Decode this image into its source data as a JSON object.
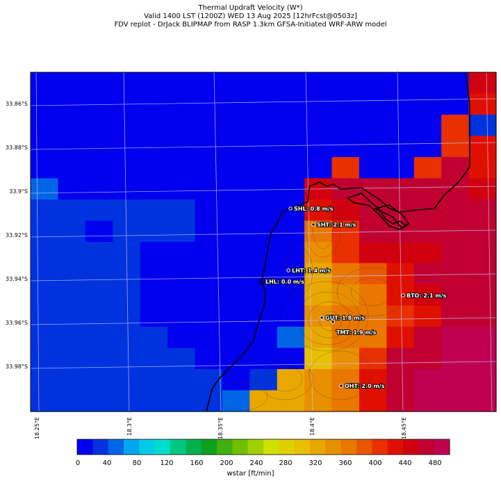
{
  "title": {
    "line1": "Thermal Updraft Velocity (W*)",
    "line2": "Valid 1400 LST (1200Z) WED 13 Aug 2025 [12hrFcst@0503z]",
    "line3": "FDV replot - DrJack BLIPMAP from RASP 1.3km GFSA-Initiated WRF-ARW model"
  },
  "lat_labels": [
    "33.86°S",
    "33.88°S",
    "33.9°S",
    "33.92°S",
    "33.94°S",
    "33.96°S",
    "33.98°S"
  ],
  "lon_labels": [
    "18.25°E",
    "18.3°E",
    "18.35°E",
    "18.4°E",
    "18.45°E"
  ],
  "stations": [
    {
      "id": "SHL",
      "label": "SHL: 0.8 m/s",
      "value": 0.8
    },
    {
      "id": "SHT",
      "label": "SHT: 2.1 m/s",
      "value": 2.1
    },
    {
      "id": "LHT",
      "label": "LHT: 1.4 m/s",
      "value": 1.4
    },
    {
      "id": "LHL",
      "label": "LHL: 0.0 m/s",
      "value": 0.0
    },
    {
      "id": "BTO",
      "label": "BTO: 2.1 m/s",
      "value": 2.1
    },
    {
      "id": "GUT",
      "label": "GUT: 1.8 m/s",
      "value": 1.8
    },
    {
      "id": "TMT",
      "label": "TMT: 1.9 m/s",
      "value": 1.9
    },
    {
      "id": "OHT",
      "label": "OHT: 2.0 m/s",
      "value": 2.0
    }
  ],
  "colorbar": {
    "ticks": [
      "0",
      "40",
      "80",
      "120",
      "160",
      "200",
      "240",
      "280",
      "320",
      "360",
      "400",
      "440",
      "480"
    ],
    "label": "wstar [ft/min]",
    "colors": [
      "#0000ee",
      "#0033dd",
      "#0066e6",
      "#00a6ee",
      "#00cce6",
      "#00dccc",
      "#00c880",
      "#00b050",
      "#10a020",
      "#40b010",
      "#70c000",
      "#a0d000",
      "#d0e000",
      "#e0d000",
      "#e8c000",
      "#e8a800",
      "#e89000",
      "#e87800",
      "#e85800",
      "#e83000",
      "#e01000",
      "#d00010",
      "#c00030",
      "#c00050"
    ],
    "min": 0,
    "max": 500,
    "step": 20
  },
  "grid_values": [
    [
      0,
      0,
      0,
      0,
      0,
      0,
      0,
      0,
      0,
      0,
      0,
      0,
      0,
      0,
      0,
      0,
      21
    ],
    [
      0,
      0,
      0,
      0,
      0,
      0,
      0,
      0,
      0,
      0,
      0,
      0,
      0,
      0,
      0,
      0,
      20
    ],
    [
      0,
      0,
      0,
      0,
      0,
      0,
      0,
      0,
      0,
      0,
      0,
      0,
      0,
      0,
      0,
      19,
      1
    ],
    [
      0,
      0,
      0,
      0,
      0,
      0,
      0,
      0,
      0,
      0,
      0,
      0,
      0,
      0,
      0,
      19,
      20
    ],
    [
      0,
      0,
      0,
      0,
      0,
      0,
      0,
      0,
      0,
      0,
      0,
      19,
      0,
      0,
      19,
      22,
      20
    ],
    [
      2,
      0,
      0,
      0,
      0,
      0,
      0,
      0,
      0,
      0,
      21,
      22,
      22,
      22,
      22,
      22,
      21
    ],
    [
      1,
      1,
      1,
      1,
      1,
      1,
      0,
      0,
      0,
      0,
      20,
      21,
      22,
      22,
      22,
      22,
      22
    ],
    [
      1,
      1,
      0,
      1,
      1,
      1,
      0,
      0,
      0,
      0,
      17,
      19,
      22,
      22,
      22,
      22,
      22
    ],
    [
      1,
      1,
      1,
      1,
      0,
      0,
      0,
      0,
      0,
      0,
      16,
      19,
      21,
      21,
      21,
      22,
      22
    ],
    [
      1,
      1,
      1,
      1,
      0,
      0,
      0,
      0,
      0,
      0,
      15,
      17,
      18,
      20,
      22,
      22,
      22
    ],
    [
      1,
      1,
      1,
      1,
      0,
      0,
      0,
      0,
      0,
      0,
      15,
      16,
      17,
      20,
      21,
      22,
      22
    ],
    [
      1,
      1,
      1,
      1,
      0,
      0,
      0,
      0,
      0,
      0,
      16,
      17,
      17,
      19,
      20,
      22,
      22
    ],
    [
      1,
      1,
      1,
      1,
      1,
      0,
      0,
      0,
      0,
      2,
      15,
      17,
      17,
      20,
      22,
      23,
      23
    ],
    [
      1,
      1,
      1,
      1,
      1,
      1,
      0,
      0,
      0,
      0,
      14,
      16,
      19,
      22,
      22,
      23,
      23
    ],
    [
      1,
      1,
      1,
      1,
      1,
      1,
      1,
      0,
      1,
      15,
      16,
      17,
      20,
      22,
      23,
      23,
      23
    ],
    [
      1,
      1,
      1,
      1,
      1,
      1,
      1,
      2,
      15,
      15,
      16,
      17,
      20,
      22,
      23,
      23,
      23
    ]
  ]
}
